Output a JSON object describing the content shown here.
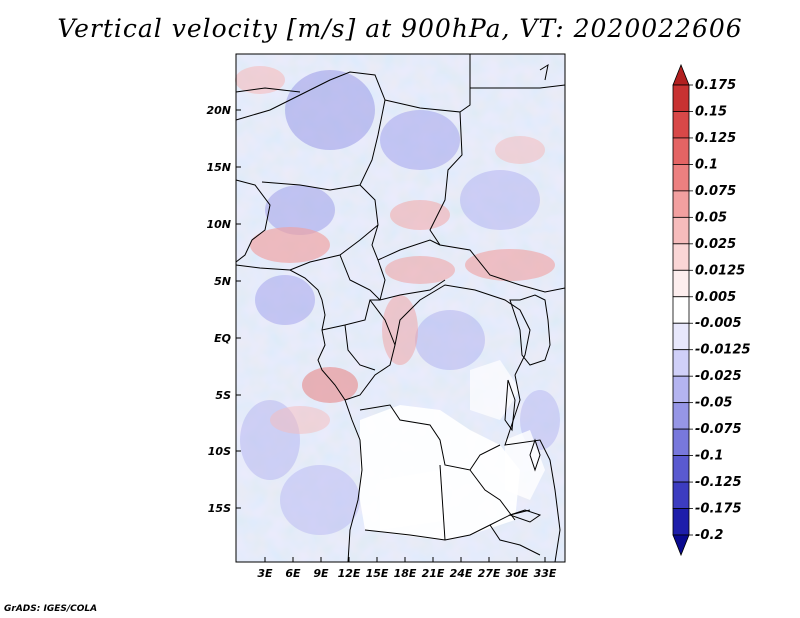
{
  "title": "Vertical velocity [m/s] at 900hPa, VT: 2020022606",
  "credit": "GrADS: IGES/COLA",
  "lat_labels": [
    "20N",
    "15N",
    "10N",
    "5N",
    "EQ",
    "5S",
    "10S",
    "15S"
  ],
  "lon_labels": [
    "3E",
    "6E",
    "9E",
    "12E",
    "15E",
    "18E",
    "21E",
    "24E",
    "27E",
    "30E",
    "33E"
  ],
  "colorbar": {
    "labels": [
      "0.175",
      "0.15",
      "0.125",
      "0.1",
      "0.075",
      "0.05",
      "0.025",
      "0.0125",
      "0.005",
      "-0.005",
      "-0.0125",
      "-0.025",
      "-0.05",
      "-0.075",
      "-0.1",
      "-0.125",
      "-0.175",
      "-0.2"
    ],
    "colors": [
      "#b22020",
      "#c83232",
      "#d84848",
      "#e46464",
      "#ec8080",
      "#f2a0a0",
      "#f6bcbc",
      "#fad6d6",
      "#fdeeee",
      "#ffffff",
      "#e8e8fc",
      "#d0d0f8",
      "#b4b4f0",
      "#9696e6",
      "#7878dc",
      "#5a5ad0",
      "#3c3cc0",
      "#1e1eaa",
      "#0a0a90"
    ]
  }
}
